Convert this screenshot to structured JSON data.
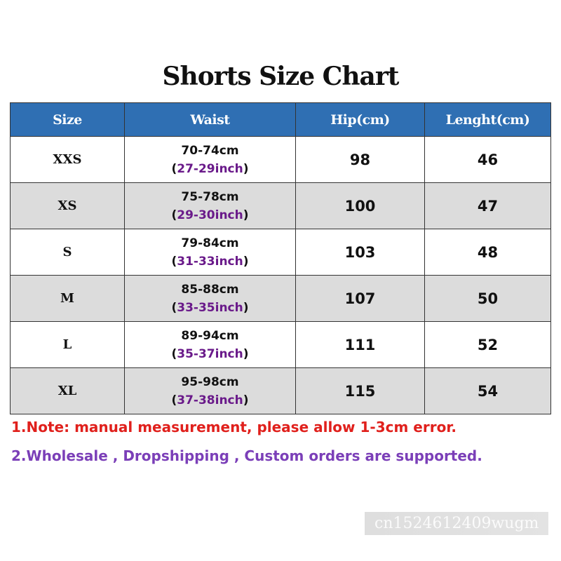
{
  "title": "Shorts Size Chart",
  "headers": [
    "Size",
    "Waist",
    "Hip(cm)",
    "Lenght(cm)"
  ],
  "rows": [
    {
      "size": "XXS",
      "waist_cm": "70-74cm",
      "waist_inch": "27-29inch",
      "hip": "98",
      "length": "46"
    },
    {
      "size": "XS",
      "waist_cm": "75-78cm",
      "waist_inch": "29-30inch",
      "hip": "100",
      "length": "47"
    },
    {
      "size": "S",
      "waist_cm": "79-84cm",
      "waist_inch": "31-33inch",
      "hip": "103",
      "length": "48"
    },
    {
      "size": "M",
      "waist_cm": "85-88cm",
      "waist_inch": "33-35inch",
      "hip": "107",
      "length": "50"
    },
    {
      "size": "L",
      "waist_cm": "89-94cm",
      "waist_inch": "35-37inch",
      "hip": "111",
      "length": "52"
    },
    {
      "size": "XL",
      "waist_cm": "95-98cm",
      "waist_inch": "37-38inch",
      "hip": "115",
      "length": "54"
    }
  ],
  "notes": [
    {
      "text": "1.Note: manual measurement, please allow 1-3cm error.",
      "color": "#e0201c"
    },
    {
      "text": "2.Wholesale , Dropshipping , Custom orders are supported.",
      "color": "#7b3fb8"
    }
  ],
  "watermark": "cn1524612409wugm",
  "colors": {
    "header": "#2f6fb3",
    "stripe": "#dcdcdc",
    "inch": "#6a1a8a"
  }
}
